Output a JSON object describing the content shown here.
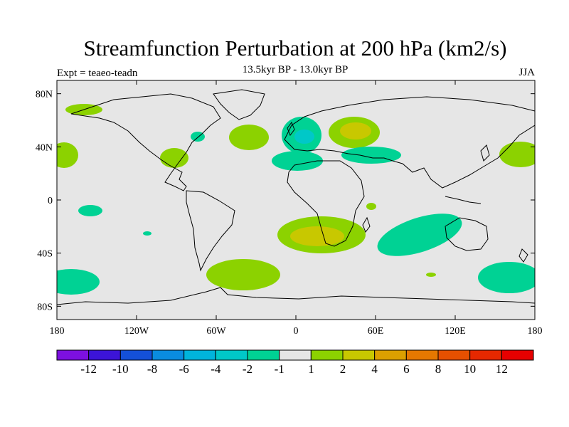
{
  "title": "Streamfunction Perturbation at 200 hPa (km2/s)",
  "subtitle": "13.5kyr BP - 13.0kyr BP",
  "left_label": "Expt = teaeo-teadn",
  "right_label": "JJA",
  "axes": {
    "x_ticks": [
      "180",
      "120W",
      "60W",
      "0",
      "60E",
      "120E",
      "180"
    ],
    "y_ticks": [
      "80N",
      "40N",
      "0",
      "40S",
      "80S"
    ]
  },
  "colorbar": {
    "colors": [
      "#7d10e0",
      "#3c14d8",
      "#1450d8",
      "#0a8ce0",
      "#00b4dc",
      "#00c8c8",
      "#00d294",
      "#e6e6e6",
      "#8cd200",
      "#c8c800",
      "#dca000",
      "#e67800",
      "#e65000",
      "#e62800",
      "#e60000"
    ],
    "labels": [
      "-12",
      "-10",
      "-8",
      "-6",
      "-4",
      "-2",
      "-1",
      "1",
      "2",
      "4",
      "6",
      "8",
      "10",
      "12"
    ]
  },
  "colors": {
    "background": "#e6e6e6",
    "pos1": "#8cd200",
    "pos2": "#c8c800",
    "neg1": "#00d294",
    "neg2": "#00c8c8",
    "coast": "#000000"
  }
}
